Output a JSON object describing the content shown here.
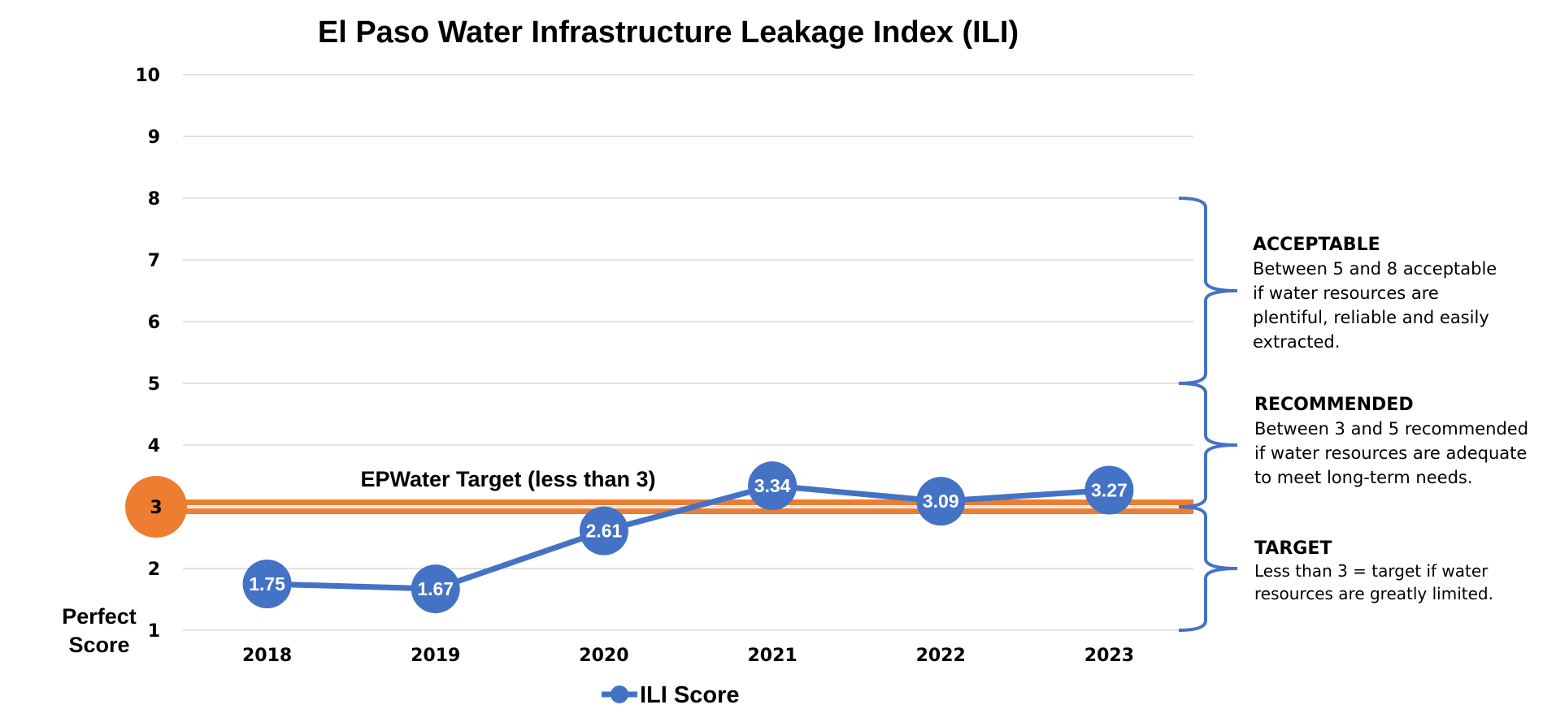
{
  "chart_data": {
    "type": "line",
    "title": "El Paso Water Infrastructure Leakage Index (ILI)",
    "categories": [
      "2018",
      "2019",
      "2020",
      "2021",
      "2022",
      "2023"
    ],
    "series": [
      {
        "name": "ILI Score",
        "values": [
          1.75,
          1.67,
          2.61,
          3.34,
          3.09,
          3.27
        ],
        "data_labels": [
          "1.75",
          "1.67",
          "2.61",
          "3.34",
          "3.09",
          "3.27"
        ]
      }
    ],
    "ylim": [
      1,
      10
    ],
    "y_ticks": [
      "1",
      "2",
      "3",
      "4",
      "5",
      "6",
      "7",
      "8",
      "9",
      "10"
    ],
    "grid": true,
    "legend": "bottom",
    "target_line": {
      "value": 3,
      "label": "EPWater Target (less than 3)",
      "marker_label": "3"
    },
    "perfect_score_label": [
      "Perfect",
      "Score"
    ],
    "annotations": [
      {
        "range": [
          5,
          8
        ],
        "heading": "ACCEPTABLE",
        "lines": [
          "Between 5 and 8 acceptable",
          "if water resources are",
          "plentiful, reliable and easily",
          "extracted."
        ]
      },
      {
        "range": [
          3,
          5
        ],
        "heading": "RECOMMENDED",
        "lines": [
          "Between 3 and 5 recommended",
          "if water resources are adequate",
          "to meet long-term needs."
        ]
      },
      {
        "range": [
          1,
          3
        ],
        "heading": "TARGET",
        "lines": [
          "Less than 3 = target if water",
          "resources are greatly limited."
        ]
      }
    ],
    "colors": {
      "series": "#4472C4",
      "target": "#ED7D31",
      "grid": "#D9D9D9"
    }
  }
}
